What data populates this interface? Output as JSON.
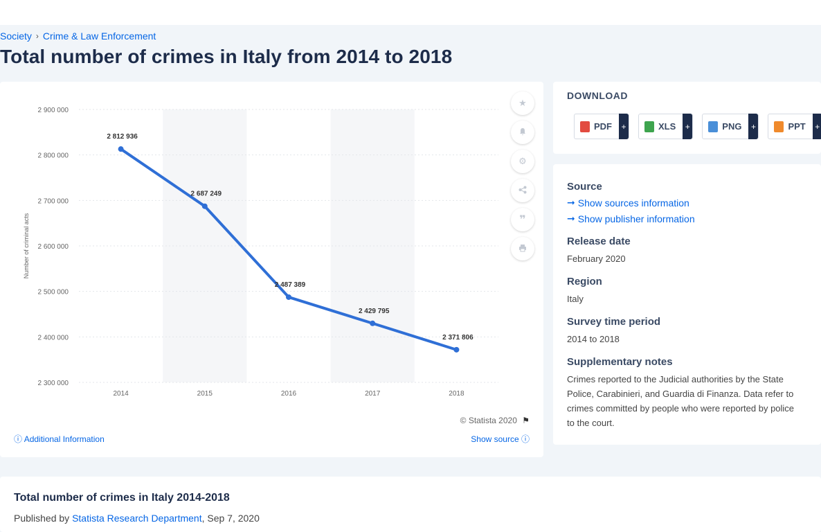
{
  "breadcrumb": {
    "item1": "Society",
    "sep": "›",
    "item2": "Crime & Law Enforcement"
  },
  "page_title": "Total number of crimes in Italy from 2014 to 2018",
  "chart_footer": {
    "copyright": "© Statista 2020",
    "additional_info": "Additional Information",
    "show_source": "Show source"
  },
  "download": {
    "title": "DOWNLOAD",
    "buttons": [
      {
        "label": "PDF",
        "plus": "+",
        "color": "#e24b40"
      },
      {
        "label": "XLS",
        "plus": "+",
        "color": "#3ea44e"
      },
      {
        "label": "PNG",
        "plus": "+",
        "color": "#4a8fd8"
      },
      {
        "label": "PPT",
        "plus": "+",
        "color": "#f08a2c"
      }
    ]
  },
  "meta": {
    "source_heading": "Source",
    "show_sources": "Show sources information",
    "show_publisher": "Show publisher information",
    "release_heading": "Release date",
    "release_value": "February 2020",
    "region_heading": "Region",
    "region_value": "Italy",
    "survey_heading": "Survey time period",
    "survey_value": "2014 to 2018",
    "notes_heading": "Supplementary notes",
    "notes_value": "Crimes reported to the Judicial authorities by the State Police, Carabinieri, and Guardia di Finanza. Data refer to crimes committed by people who were reported by police to the court."
  },
  "bottom": {
    "title": "Total number of crimes in Italy 2014-2018",
    "published_by": "Published by",
    "publisher": "Statista Research Department",
    "date": ", Sep 7, 2020"
  },
  "icons": [
    "star-icon",
    "bell-icon",
    "gear-icon",
    "share-icon",
    "quote-icon",
    "print-icon",
    "flag-icon",
    "info-icon",
    "arrow-right-icon"
  ],
  "chart_data": {
    "type": "line",
    "categories": [
      "2014",
      "2015",
      "2016",
      "2017",
      "2018"
    ],
    "series": [
      {
        "values": [
          2812936,
          2687249,
          2487389,
          2429795,
          2371806
        ]
      }
    ],
    "data_labels": [
      "2 812 936",
      "2 687 249",
      "2 487 389",
      "2 429 795",
      "2 371 806"
    ],
    "y_ticks": [
      "2 300 000",
      "2 400 000",
      "2 500 000",
      "2 600 000",
      "2 700 000",
      "2 800 000",
      "2 900 000"
    ],
    "ylabel": "Number of criminal acts",
    "ylim": [
      2300000,
      2900000
    ],
    "grid": true,
    "line_color": "#2f6fd6"
  }
}
